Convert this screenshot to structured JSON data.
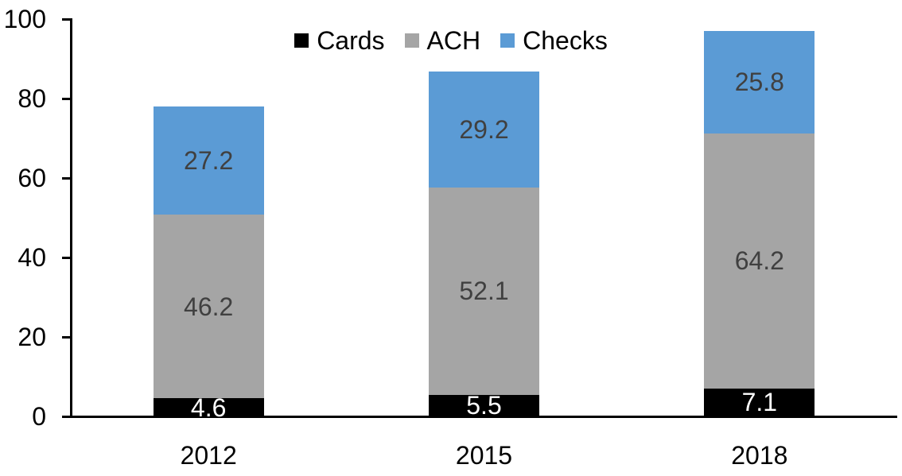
{
  "chart_data": {
    "type": "bar",
    "stacked": true,
    "title": "",
    "xlabel": "",
    "ylabel": "",
    "categories": [
      "2012",
      "2015",
      "2018"
    ],
    "series": [
      {
        "name": "Cards",
        "color": "#000000",
        "label_color": "#FFFFFF",
        "values": [
          4.6,
          5.5,
          7.1
        ]
      },
      {
        "name": "ACH",
        "color": "#A5A5A5",
        "label_color": "#404040",
        "values": [
          46.2,
          52.1,
          64.2
        ]
      },
      {
        "name": "Checks",
        "color": "#5B9BD5",
        "label_color": "#404040",
        "values": [
          27.2,
          29.2,
          25.8
        ]
      }
    ],
    "totals": [
      78.0,
      86.8,
      97.1
    ],
    "ylim": [
      0,
      100
    ],
    "yticks": [
      0,
      20,
      40,
      60,
      80,
      100
    ],
    "grid": false,
    "legend_position": "top-center",
    "axis_color": "#000000"
  }
}
